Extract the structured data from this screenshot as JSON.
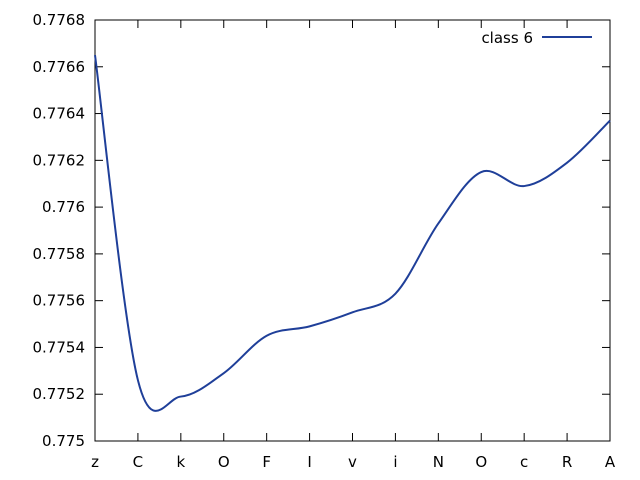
{
  "chart_data": {
    "type": "line",
    "title": "",
    "xlabel": "",
    "ylabel": "",
    "categories": [
      "z",
      "C",
      "k",
      "O",
      "F",
      "I",
      "v",
      "i",
      "N",
      "O",
      "c",
      "R",
      "A"
    ],
    "ylim": [
      0.775,
      0.7768
    ],
    "yticks": [
      0.775,
      0.7752,
      0.7754,
      0.7756,
      0.7758,
      0.776,
      0.7762,
      0.7764,
      0.7766,
      0.7768
    ],
    "ytick_labels": [
      "0.775",
      "0.7752",
      "0.7754",
      "0.7756",
      "0.7758",
      "0.776",
      "0.7762",
      "0.7764",
      "0.7766",
      "0.7768"
    ],
    "grid": false,
    "legend": {
      "position": "top-right"
    },
    "series": [
      {
        "name": "class 6",
        "color": "#1f3f99",
        "values": [
          0.77665,
          0.77526,
          0.77519,
          0.77529,
          0.77545,
          0.77549,
          0.77555,
          0.77563,
          0.77593,
          0.77615,
          0.77609,
          0.77619,
          0.77637
        ]
      }
    ]
  }
}
